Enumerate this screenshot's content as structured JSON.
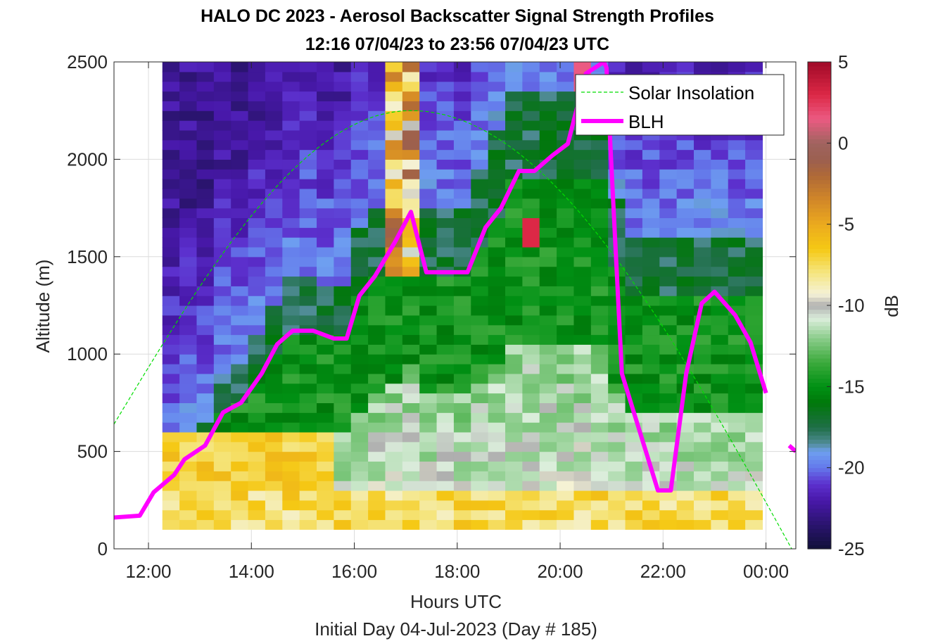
{
  "figure": {
    "title_line1": "HALO DC 2023 - Aerosol Backscatter Signal Strength Profiles",
    "title_line2": "12:16 07/04/23 to 23:56 07/04/23  UTC",
    "xlabel": "Hours UTC",
    "sublabel": "Initial Day 04-Jul-2023 (Day # 185)",
    "ylabel": "Altitude (m)",
    "colorbar_label": "dB"
  },
  "chart_data": {
    "type": "heatmap",
    "title": "HALO DC 2023 - Aerosol Backscatter Signal Strength Profiles",
    "subtitle": "12:16 07/04/23 to 23:56 07/04/23  UTC",
    "xlabel": "Hours UTC",
    "ylabel": "Altitude (m)",
    "xlim": [
      11.33,
      24.58
    ],
    "ylim": [
      0,
      2500
    ],
    "grid": true,
    "x_ticks": [
      12,
      14,
      16,
      18,
      20,
      22,
      24
    ],
    "x_tick_labels": [
      "12:00",
      "14:00",
      "16:00",
      "18:00",
      "20:00",
      "22:00",
      "00:00"
    ],
    "y_ticks": [
      0,
      500,
      1000,
      1500,
      2000,
      2500
    ],
    "y_tick_labels": [
      "0",
      "500",
      "1000",
      "1500",
      "2000",
      "2500"
    ],
    "colorbar": {
      "label": "dB",
      "range": [
        -25,
        5
      ],
      "ticks": [
        5,
        0,
        -5,
        -10,
        -15,
        -20,
        -25
      ],
      "tick_labels": [
        "5",
        "0",
        "-5",
        "-10",
        "-15",
        "-20",
        "-25"
      ]
    },
    "heatmap": {
      "x_start": 12.27,
      "x_end": 23.93,
      "n_columns": 35,
      "y_bottom": 100,
      "y_top": 2500,
      "n_rows": 48,
      "cell_height_m": 50,
      "description_units": "dB"
    },
    "legend": {
      "position": "top-right",
      "entries": [
        "Solar Insolation",
        "BLH"
      ]
    },
    "series": [
      {
        "name": "BLH",
        "color": "#FF00FF",
        "points": [
          [
            11.3,
            160
          ],
          [
            11.83,
            170
          ],
          [
            12.1,
            290
          ],
          [
            12.5,
            380
          ],
          [
            12.7,
            460
          ],
          [
            13.1,
            530
          ],
          [
            13.45,
            700
          ],
          [
            13.8,
            750
          ],
          [
            14.2,
            900
          ],
          [
            14.5,
            1050
          ],
          [
            14.8,
            1120
          ],
          [
            15.2,
            1120
          ],
          [
            15.6,
            1080
          ],
          [
            15.85,
            1080
          ],
          [
            16.1,
            1300
          ],
          [
            16.4,
            1400
          ],
          [
            16.8,
            1580
          ],
          [
            17.1,
            1730
          ],
          [
            17.4,
            1420
          ],
          [
            17.65,
            1420
          ],
          [
            18.2,
            1420
          ],
          [
            18.55,
            1650
          ],
          [
            18.85,
            1750
          ],
          [
            19.2,
            1940
          ],
          [
            19.5,
            1940
          ],
          [
            19.85,
            2020
          ],
          [
            20.15,
            2080
          ],
          [
            20.5,
            2440
          ],
          [
            20.85,
            2500
          ],
          [
            20.9,
            2470
          ],
          [
            21.2,
            900
          ],
          [
            21.9,
            300
          ],
          [
            22.15,
            300
          ],
          [
            22.45,
            900
          ],
          [
            22.75,
            1260
          ],
          [
            23.0,
            1320
          ],
          [
            23.4,
            1200
          ],
          [
            23.7,
            1060
          ],
          [
            24.0,
            800
          ]
        ]
      },
      {
        "name": "BLH",
        "color": "#FF00FF",
        "points": [
          [
            24.45,
            530
          ],
          [
            24.58,
            500
          ]
        ]
      },
      {
        "name": "Solar Insolation",
        "color": "#00DD00",
        "style": "dashed",
        "shape": "arch",
        "peak_x": 17.1,
        "peak_y": 2250,
        "start": [
          11.33,
          640
        ],
        "end": [
          24.5,
          0
        ]
      }
    ]
  }
}
